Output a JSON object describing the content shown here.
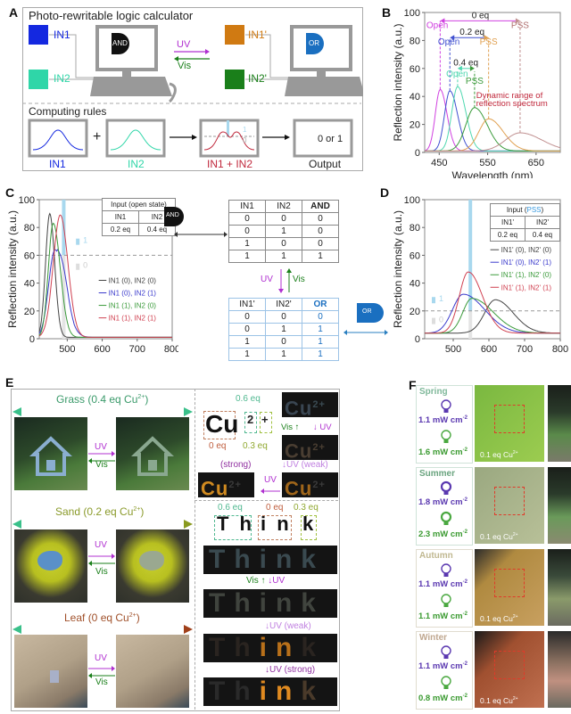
{
  "panels": {
    "a": "A",
    "b": "B",
    "c": "C",
    "d": "D",
    "e": "E",
    "f": "F"
  },
  "panel_a": {
    "title": "Photo-rewritable logic calculator",
    "in1": "IN1",
    "in2": "IN2",
    "in1p": "IN1'",
    "in2p": "IN2'",
    "and_gate": "AND",
    "or_gate": "OR",
    "uv": "UV",
    "vis": "Vis",
    "rules_title": "Computing rules",
    "plus": "+",
    "rule_in1": "IN1",
    "rule_in2": "IN2",
    "rule_sum": "IN1 + IN2",
    "rule_output": "Output",
    "output_text": "0 or 1",
    "level1": "1",
    "level0": "0",
    "colors": {
      "in1": "#1428e0",
      "in2": "#2fd6a8",
      "in1p": "#d07a12",
      "in2p": "#1a7f1a",
      "uv": "#b030d0",
      "vis": "#1a7f1a",
      "sum": "#c0283c"
    }
  },
  "chart_data": [
    {
      "type": "line",
      "title": "",
      "xlabel": "Wavelength (nm)",
      "ylabel": "Reflection intensity (a.u.)",
      "xlim": [
        420,
        700
      ],
      "ylim": [
        0,
        100
      ],
      "xticks": [
        450,
        550,
        650
      ],
      "yticks": [
        0,
        20,
        40,
        60,
        80,
        100
      ],
      "series": [
        {
          "name": "0 eq Open",
          "color": "#d040e0",
          "peak_x": 452,
          "peak_y": 45
        },
        {
          "name": "0.2 eq Open",
          "color": "#4050d0",
          "peak_x": 472,
          "peak_y": 44
        },
        {
          "name": "0.4 eq Open",
          "color": "#50d8b0",
          "peak_x": 488,
          "peak_y": 47
        },
        {
          "name": "0.4 eq PSS",
          "color": "#3a9a3a",
          "peak_x": 523,
          "peak_y": 32
        },
        {
          "name": "0.2 eq PSS",
          "color": "#e0a050",
          "peak_x": 552,
          "peak_y": 24
        },
        {
          "name": "0 eq PSS",
          "color": "#c09090",
          "peak_x": 617,
          "peak_y": 14
        }
      ],
      "annotations": [
        {
          "label": "0 eq",
          "from": "Open",
          "to": "PSS",
          "y": 94
        },
        {
          "label": "0.2 eq",
          "from": "Open",
          "to": "PSS",
          "y": 82
        },
        {
          "label": "0.4 eq",
          "from": "Open",
          "to": "PSS",
          "y": 59
        },
        {
          "label": "Open",
          "color": "#d040e0"
        },
        {
          "label": "PSS",
          "color": "#b07070"
        },
        {
          "label": "Open",
          "color": "#4050d0"
        },
        {
          "label": "PSS",
          "color": "#e0a050"
        },
        {
          "label": "Open",
          "color": "#50d8b0"
        },
        {
          "label": "PSS",
          "color": "#3a9a3a"
        },
        {
          "label": "Dynamic range of",
          "color": "#c0283c"
        },
        {
          "label": "reflection spectrum",
          "color": "#c0283c"
        }
      ]
    },
    {
      "type": "line",
      "xlabel": "Wavelength (nm)",
      "ylabel": "Reflection intensity (a.u.)",
      "xlim": [
        420,
        800
      ],
      "ylim": [
        0,
        100
      ],
      "xticks": [
        500,
        600,
        700,
        800
      ],
      "yticks": [
        0,
        20,
        40,
        60,
        80,
        100
      ],
      "threshold": 60,
      "highlight_x": 490,
      "legend": "right",
      "level1": "1",
      "level0": "0",
      "series": [
        {
          "name": "IN1 (0), IN2 (0)",
          "color": "#444444",
          "peak_x": 450,
          "peak_y": 90
        },
        {
          "name": "IN1 (0), IN2 (1)",
          "color": "#3a3acc",
          "peak_x": 465,
          "peak_y": 64
        },
        {
          "name": "IN1 (1), IN2 (0)",
          "color": "#3a9a3a",
          "peak_x": 460,
          "peak_y": 83
        },
        {
          "name": "IN1 (1), IN2 (1)",
          "color": "#d04050",
          "peak_x": 480,
          "peak_y": 89
        }
      ],
      "table": {
        "title": "Input (open state)",
        "headers": [
          "IN1",
          "IN2"
        ],
        "values": [
          "0.2 eq",
          "0.4 eq"
        ]
      }
    },
    {
      "type": "line",
      "xlabel": "Wavelength (nm)",
      "ylabel": "Reflection intensity (a.u.)",
      "xlim": [
        420,
        800
      ],
      "ylim": [
        0,
        100
      ],
      "xticks": [
        500,
        600,
        700,
        800
      ],
      "yticks": [
        0,
        20,
        40,
        60,
        80,
        100
      ],
      "threshold": 20,
      "highlight_x": 548,
      "legend": "right",
      "level1": "1",
      "level0": "0",
      "series": [
        {
          "name": "IN1' (0), IN2' (0)",
          "color": "#444444",
          "peak_x": 618,
          "peak_y": 28
        },
        {
          "name": "IN1' (0), IN2' (1)",
          "color": "#3a3acc",
          "peak_x": 528,
          "peak_y": 32
        },
        {
          "name": "IN1' (1), IN2' (0)",
          "color": "#3a9a3a",
          "peak_x": 552,
          "peak_y": 29
        },
        {
          "name": "IN1' (1), IN2' (1)",
          "color": "#d04050",
          "peak_x": 542,
          "peak_y": 48
        }
      ],
      "table": {
        "title_pre": "Input (",
        "title_hl": "PSS",
        "title_post": ")",
        "headers": [
          "IN1'",
          "IN2'"
        ],
        "values": [
          "0.2 eq",
          "0.4 eq"
        ]
      }
    },
    {
      "type": "table",
      "name": "AND truth table",
      "headers": [
        "IN1",
        "IN2",
        "AND"
      ],
      "rows": [
        [
          "0",
          "0",
          "0"
        ],
        [
          "0",
          "1",
          "0"
        ],
        [
          "1",
          "0",
          "0"
        ],
        [
          "1",
          "1",
          "1"
        ]
      ]
    },
    {
      "type": "table",
      "name": "OR truth table",
      "headers": [
        "IN1'",
        "IN2'",
        "OR"
      ],
      "rows": [
        [
          "0",
          "0",
          "0"
        ],
        [
          "0",
          "1",
          "1"
        ],
        [
          "1",
          "0",
          "1"
        ],
        [
          "1",
          "1",
          "1"
        ]
      ]
    }
  ],
  "logic": {
    "and_gate": "AND",
    "or_gate": "OR",
    "uv": "UV",
    "vis": "Vis"
  },
  "panel_e": {
    "grass": {
      "pre": "Grass (0.4 eq  Cu",
      "sup": "2+",
      "post": ")"
    },
    "sand": {
      "pre": "Sand (0.2 eq  Cu",
      "sup": "2+",
      "post": ")"
    },
    "leaf": {
      "pre": "Leaf (0 eq  Cu",
      "sup": "2+",
      "post": ")"
    },
    "uv": "UV",
    "vis": "Vis",
    "cu": {
      "letters": "Cu",
      "two": "2",
      "plus": "+",
      "eq_06": "0.6 eq",
      "eq_0": "0 eq",
      "eq_03": "0.3 eq",
      "vis_up": "Vis",
      "uv_down": "UV",
      "strong": "(strong)",
      "weak": "UV (weak)",
      "uv": "UV",
      "cu_text": "Cu",
      "cu_sup": "2+"
    },
    "think": {
      "word": "Think",
      "t_h": "T h",
      "i_n": "i n",
      "k": "k",
      "eq_06": "0.6 eq",
      "eq_0": "0 eq",
      "eq_03": "0.3 eq",
      "vis": "Vis",
      "uv": "UV",
      "weak": "UV (weak)",
      "strong": "UV (strong)"
    }
  },
  "panel_f": {
    "seasons": [
      {
        "name": "Spring",
        "uv_power": "1.1 mW cm",
        "vis_power": "1.6 mW cm",
        "unit_sup": "-2",
        "caption": "0.1 eq  Cu",
        "cap_sup": "2+",
        "color": "#7fb89a"
      },
      {
        "name": "Summer",
        "uv_power": "1.8 mW cm",
        "vis_power": "2.3 mW cm",
        "unit_sup": "-2",
        "caption": "0.1 eq  Cu",
        "cap_sup": "2+",
        "color": "#6aa47f"
      },
      {
        "name": "Autumn",
        "uv_power": "1.1 mW cm",
        "vis_power": "1.1 mW cm",
        "unit_sup": "-2",
        "caption": "0.1 eq  Cu",
        "cap_sup": "2+",
        "color": "#c0b890"
      },
      {
        "name": "Winter",
        "uv_power": "1.1 mW cm",
        "vis_power": "0.8 mW cm",
        "unit_sup": "-2",
        "caption": "0.1 eq  Cu",
        "cap_sup": "2+",
        "color": "#c0a890"
      }
    ]
  }
}
